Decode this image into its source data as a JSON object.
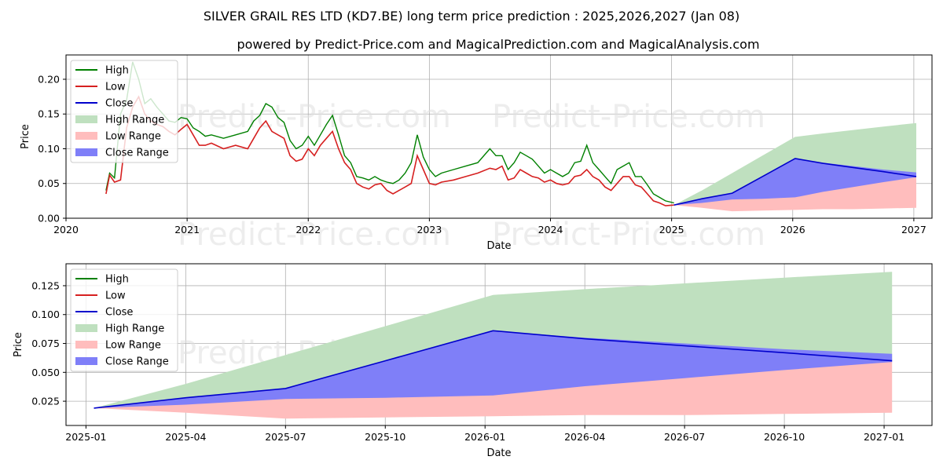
{
  "title": "SILVER GRAIL RES LTD (KD7.BE) long term price prediction : 2025,2026,2027 (Jan 08)",
  "subtitle": "powered by Predict-Price.com and MagicalPrediction.com and MagicalAnalysis.com",
  "watermark": "Predict-Price.com",
  "colors": {
    "high": "#008000",
    "low": "#d62020",
    "close": "#0000cc",
    "high_range": "#bfe0bf",
    "low_range": "#ffbdbd",
    "close_range": "#7f7ff8"
  },
  "legend": [
    "High",
    "Low",
    "Close",
    "High Range",
    "Low Range",
    "Close Range"
  ],
  "chart_data": [
    {
      "type": "line",
      "xlabel": "Date",
      "ylabel": "Price",
      "x_ticks": [
        "2020",
        "2021",
        "2022",
        "2023",
        "2024",
        "2025",
        "2026",
        "2027"
      ],
      "y_ticks": [
        "0.00",
        "0.05",
        "0.10",
        "0.15",
        "0.20"
      ],
      "xlim": [
        2020.0,
        2027.15
      ],
      "ylim": [
        0,
        0.235
      ],
      "grid": true,
      "legend_position": "top-left",
      "history": {
        "x": [
          2020.33,
          2020.36,
          2020.4,
          2020.45,
          2020.5,
          2020.55,
          2020.6,
          2020.65,
          2020.7,
          2020.75,
          2020.8,
          2020.85,
          2020.9,
          2020.95,
          2021.0,
          2021.05,
          2021.1,
          2021.15,
          2021.2,
          2021.3,
          2021.4,
          2021.5,
          2021.55,
          2021.6,
          2021.65,
          2021.7,
          2021.75,
          2021.8,
          2021.85,
          2021.9,
          2021.95,
          2022.0,
          2022.05,
          2022.1,
          2022.15,
          2022.2,
          2022.25,
          2022.3,
          2022.35,
          2022.4,
          2022.45,
          2022.5,
          2022.55,
          2022.6,
          2022.65,
          2022.7,
          2022.75,
          2022.8,
          2022.85,
          2022.9,
          2022.95,
          2023.0,
          2023.05,
          2023.1,
          2023.2,
          2023.3,
          2023.4,
          2023.5,
          2023.55,
          2023.6,
          2023.65,
          2023.7,
          2023.75,
          2023.8,
          2023.85,
          2023.9,
          2023.95,
          2024.0,
          2024.05,
          2024.1,
          2024.15,
          2024.2,
          2024.25,
          2024.3,
          2024.35,
          2024.4,
          2024.45,
          2024.5,
          2024.55,
          2024.6,
          2024.65,
          2024.7,
          2024.75,
          2024.8,
          2024.85,
          2024.9,
          2024.95,
          2025.02
        ],
        "high": [
          0.04,
          0.065,
          0.058,
          0.15,
          0.17,
          0.225,
          0.2,
          0.165,
          0.172,
          0.16,
          0.15,
          0.14,
          0.138,
          0.145,
          0.143,
          0.13,
          0.125,
          0.118,
          0.12,
          0.115,
          0.12,
          0.125,
          0.14,
          0.148,
          0.165,
          0.16,
          0.145,
          0.138,
          0.112,
          0.1,
          0.105,
          0.118,
          0.105,
          0.12,
          0.135,
          0.148,
          0.12,
          0.09,
          0.08,
          0.06,
          0.058,
          0.055,
          0.06,
          0.055,
          0.052,
          0.05,
          0.055,
          0.065,
          0.08,
          0.12,
          0.088,
          0.07,
          0.06,
          0.065,
          0.07,
          0.075,
          0.08,
          0.1,
          0.09,
          0.09,
          0.07,
          0.08,
          0.095,
          0.09,
          0.085,
          0.075,
          0.065,
          0.07,
          0.065,
          0.06,
          0.065,
          0.08,
          0.082,
          0.105,
          0.08,
          0.07,
          0.06,
          0.05,
          0.07,
          0.075,
          0.08,
          0.06,
          0.06,
          0.048,
          0.035,
          0.03,
          0.025,
          0.022
        ],
        "low": [
          0.035,
          0.062,
          0.052,
          0.055,
          0.13,
          0.16,
          0.175,
          0.15,
          0.14,
          0.135,
          0.132,
          0.125,
          0.12,
          0.128,
          0.135,
          0.12,
          0.105,
          0.105,
          0.108,
          0.1,
          0.105,
          0.1,
          0.115,
          0.13,
          0.14,
          0.125,
          0.12,
          0.115,
          0.09,
          0.082,
          0.085,
          0.1,
          0.09,
          0.105,
          0.115,
          0.125,
          0.1,
          0.08,
          0.07,
          0.05,
          0.045,
          0.042,
          0.048,
          0.05,
          0.04,
          0.035,
          0.04,
          0.045,
          0.05,
          0.09,
          0.07,
          0.05,
          0.048,
          0.052,
          0.055,
          0.06,
          0.065,
          0.072,
          0.07,
          0.075,
          0.055,
          0.058,
          0.07,
          0.065,
          0.06,
          0.058,
          0.052,
          0.055,
          0.05,
          0.048,
          0.05,
          0.06,
          0.062,
          0.07,
          0.06,
          0.055,
          0.045,
          0.04,
          0.05,
          0.06,
          0.06,
          0.048,
          0.045,
          0.035,
          0.025,
          0.022,
          0.018,
          0.019
        ]
      },
      "prediction": {
        "x": [
          2025.02,
          2025.25,
          2025.5,
          2025.75,
          2026.02,
          2026.25,
          2026.5,
          2026.75,
          2027.02
        ],
        "high_range_upper": [
          0.019,
          0.04,
          0.065,
          0.09,
          0.117,
          0.122,
          0.127,
          0.132,
          0.137
        ],
        "low_range_lower": [
          0.019,
          0.015,
          0.01,
          0.011,
          0.012,
          0.013,
          0.013,
          0.014,
          0.015
        ],
        "close_range_upper": [
          0.019,
          0.028,
          0.036,
          0.06,
          0.086,
          0.08,
          0.075,
          0.07,
          0.066
        ],
        "close_range_lower": [
          0.019,
          0.022,
          0.027,
          0.028,
          0.03,
          0.038,
          0.045,
          0.052,
          0.059
        ],
        "close": [
          0.019,
          0.028,
          0.036,
          0.06,
          0.086,
          0.079,
          0.073,
          0.067,
          0.06
        ]
      }
    },
    {
      "type": "line",
      "xlabel": "Date",
      "ylabel": "Price",
      "x_ticks": [
        "2025-01",
        "2025-04",
        "2025-07",
        "2025-10",
        "2026-01",
        "2026-04",
        "2026-07",
        "2026-10",
        "2027-01"
      ],
      "y_ticks": [
        "0.025",
        "0.050",
        "0.075",
        "0.100",
        "0.125"
      ],
      "xlim": [
        2024.95,
        2027.12
      ],
      "ylim": [
        0.004,
        0.144
      ],
      "grid": true,
      "legend_position": "top-left",
      "prediction": {
        "x": [
          2025.02,
          2025.25,
          2025.5,
          2025.75,
          2026.02,
          2026.25,
          2026.5,
          2026.75,
          2027.02
        ],
        "high_range_upper": [
          0.019,
          0.04,
          0.065,
          0.09,
          0.117,
          0.122,
          0.127,
          0.132,
          0.137
        ],
        "low_range_lower": [
          0.019,
          0.015,
          0.01,
          0.011,
          0.012,
          0.013,
          0.013,
          0.014,
          0.015
        ],
        "close_range_upper": [
          0.019,
          0.028,
          0.036,
          0.06,
          0.086,
          0.08,
          0.075,
          0.07,
          0.066
        ],
        "close_range_lower": [
          0.019,
          0.022,
          0.027,
          0.028,
          0.03,
          0.038,
          0.045,
          0.052,
          0.059
        ],
        "close": [
          0.019,
          0.028,
          0.036,
          0.06,
          0.086,
          0.079,
          0.073,
          0.067,
          0.06
        ]
      }
    }
  ]
}
